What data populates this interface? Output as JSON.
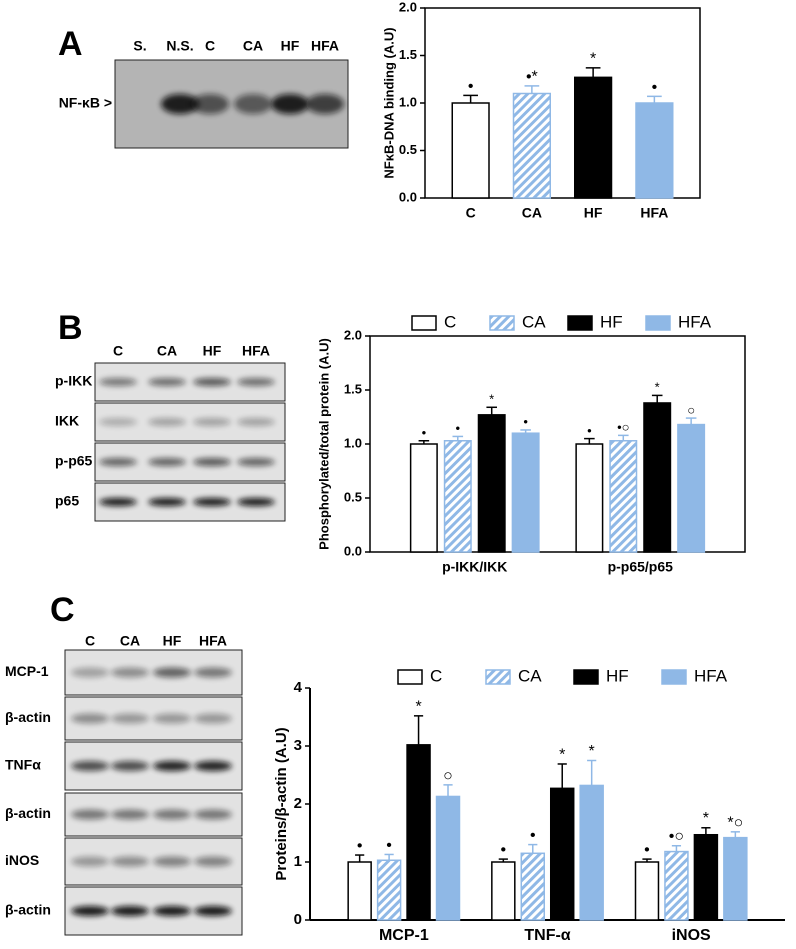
{
  "figure": {
    "panel_labels": [
      "A",
      "B",
      "C"
    ]
  },
  "blots": [
    {
      "lanes": [
        "S.",
        "N.S.",
        "C",
        "CA",
        "HF",
        "HFA"
      ],
      "rows": [
        "NF-κB >"
      ]
    },
    {
      "lanes": [
        "C",
        "CA",
        "HF",
        "HFA"
      ],
      "rows": [
        "p-IKK",
        "IKK",
        "p-p65",
        "p65"
      ]
    },
    {
      "lanes": [
        "C",
        "CA",
        "HF",
        "HFA"
      ],
      "rows": [
        "MCP-1",
        "β-actin",
        "TNFα",
        "β-actin",
        "iNOS",
        "β-actin"
      ]
    }
  ],
  "chart_data": [
    {
      "type": "bar",
      "ylabel": "NFκB-DNA binding (A.U)",
      "categories": [
        "C",
        "CA",
        "HF",
        "HFA"
      ],
      "values": [
        1.0,
        1.1,
        1.27,
        1.0
      ],
      "errors": [
        0.08,
        0.08,
        0.1,
        0.07
      ],
      "colors": [
        "#ffffff",
        "#8fb8e6",
        "#000000",
        "#8fb8e6"
      ],
      "hatched": [
        false,
        true,
        false,
        false
      ],
      "markers": [
        "•",
        "•*",
        "*",
        "•"
      ],
      "ylim": [
        0,
        2
      ],
      "yticks": [
        {
          "value": 0,
          "label": "0.0"
        },
        {
          "value": 0.5,
          "label": "0.5"
        },
        {
          "value": 1,
          "label": "1.0"
        },
        {
          "value": 1.5,
          "label": "1.5"
        },
        {
          "value": 2,
          "label": "2.0"
        }
      ]
    },
    {
      "type": "bar",
      "ylabel": "Phosphorylated/total protein (A.U)",
      "legend": "top",
      "categories": [
        "p-IKK/IKK",
        "p-p65/p65"
      ],
      "series": [
        {
          "name": "C",
          "color": "#ffffff",
          "hatched": false,
          "values": [
            1.0,
            1.0
          ],
          "errors": [
            0.03,
            0.05
          ],
          "markers": [
            "•",
            "•"
          ]
        },
        {
          "name": "CA",
          "color": "#8fb8e6",
          "hatched": true,
          "values": [
            1.03,
            1.03
          ],
          "errors": [
            0.04,
            0.05
          ],
          "markers": [
            "•",
            "•○"
          ]
        },
        {
          "name": "HF",
          "color": "#000000",
          "hatched": false,
          "values": [
            1.27,
            1.38
          ],
          "errors": [
            0.07,
            0.07
          ],
          "markers": [
            "*",
            "*"
          ]
        },
        {
          "name": "HFA",
          "color": "#8fb8e6",
          "hatched": false,
          "values": [
            1.1,
            1.18
          ],
          "errors": [
            0.03,
            0.06
          ],
          "markers": [
            "•",
            "○"
          ]
        }
      ],
      "ylim": [
        0,
        2
      ],
      "yticks": [
        {
          "value": 0,
          "label": "0.0"
        },
        {
          "value": 0.5,
          "label": "0.5"
        },
        {
          "value": 1,
          "label": "1.0"
        },
        {
          "value": 1.5,
          "label": "1.5"
        },
        {
          "value": 2,
          "label": "2.0"
        }
      ]
    },
    {
      "type": "bar",
      "ylabel": "Proteins/β-actin (A.U)",
      "legend": "top",
      "categories": [
        "MCP-1",
        "TNF-α",
        "iNOS"
      ],
      "series": [
        {
          "name": "C",
          "color": "#ffffff",
          "hatched": false,
          "values": [
            1.0,
            1.0,
            1.0
          ],
          "errors": [
            0.12,
            0.05,
            0.05
          ],
          "markers": [
            "•",
            "•",
            "•"
          ]
        },
        {
          "name": "CA",
          "color": "#8fb8e6",
          "hatched": true,
          "values": [
            1.03,
            1.15,
            1.18
          ],
          "errors": [
            0.1,
            0.15,
            0.1
          ],
          "markers": [
            "•",
            "•",
            "•○"
          ]
        },
        {
          "name": "HF",
          "color": "#000000",
          "hatched": false,
          "values": [
            3.02,
            2.27,
            1.47
          ],
          "errors": [
            0.5,
            0.42,
            0.12
          ],
          "markers": [
            "*",
            "*",
            "*"
          ]
        },
        {
          "name": "HFA",
          "color": "#8fb8e6",
          "hatched": false,
          "values": [
            2.13,
            2.32,
            1.42
          ],
          "errors": [
            0.2,
            0.43,
            0.1
          ],
          "markers": [
            "○",
            "*",
            "*○"
          ]
        }
      ],
      "ylim": [
        0,
        4
      ],
      "yticks": [
        0,
        1,
        2,
        3,
        4
      ]
    }
  ]
}
